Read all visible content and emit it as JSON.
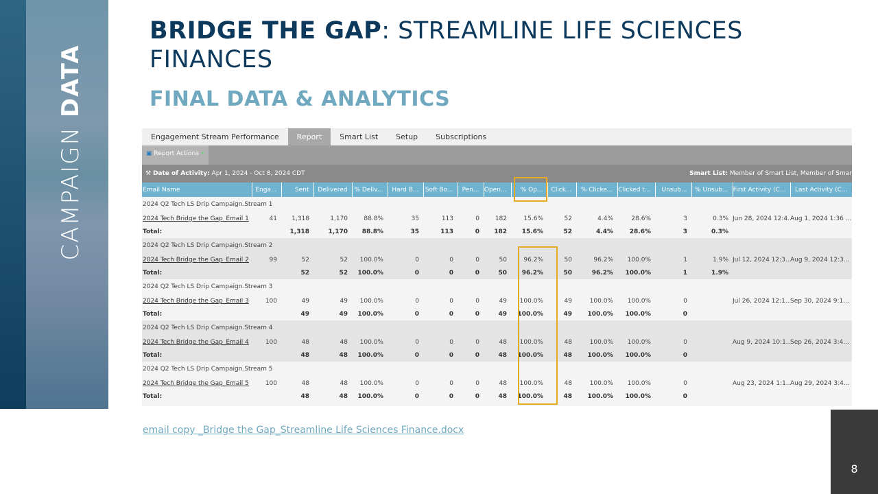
{
  "sidebar": {
    "title_light": "CAMPAIGN ",
    "title_bold": "DATA"
  },
  "header": {
    "title_bold": "BRIDGE THE GAP",
    "title_rest": ": STREAMLINE LIFE SCIENCES FINANCES",
    "subtitle": "FINAL DATA & ANALYTICS"
  },
  "report": {
    "tabs": [
      {
        "label": "Engagement Stream Performance"
      },
      {
        "label": "Report",
        "active": true
      },
      {
        "label": "Smart List"
      },
      {
        "label": "Setup"
      },
      {
        "label": "Subscriptions"
      }
    ],
    "actions_label": "Report Actions",
    "date_label": "Date of Activity:",
    "date_value": "Apr 1, 2024 - Oct 8, 2024 CDT",
    "smartlist_label": "Smart List:",
    "smartlist_value": "Member of Smart List, Member of Smar",
    "columns": [
      "Email Name",
      "Enga...",
      "Sent",
      "Delivered",
      "% Deliv...",
      "Hard B...",
      "Soft Bo...",
      "Pen...",
      "Open...",
      "% Op...",
      "Click...",
      "% Clicke...",
      "Clicked t...",
      "Unsub...",
      "% Unsub...",
      "First Activity (C...",
      "Last Activity (C..."
    ],
    "groups": [
      {
        "stream": "2024 Q2 Tech LS Drip Campaign.Stream 1",
        "email": [
          "2024 Tech Bridge the Gap_Email 1",
          "41",
          "1,318",
          "1,170",
          "88.8%",
          "35",
          "113",
          "0",
          "182",
          "15.6%",
          "52",
          "4.4%",
          "28.6%",
          "3",
          "0.3%",
          "Jun 28, 2024 12:4...",
          "Aug 1, 2024 1:36 ..."
        ],
        "total": [
          "Total:",
          "",
          "1,318",
          "1,170",
          "88.8%",
          "35",
          "113",
          "0",
          "182",
          "15.6%",
          "52",
          "4.4%",
          "28.6%",
          "3",
          "0.3%",
          "",
          ""
        ]
      },
      {
        "stream": "2024 Q2 Tech LS Drip Campaign.Stream 2",
        "email": [
          "2024 Tech Bridge the Gap_Email 2",
          "99",
          "52",
          "52",
          "100.0%",
          "0",
          "0",
          "0",
          "50",
          "96.2%",
          "50",
          "96.2%",
          "100.0%",
          "1",
          "1.9%",
          "Jul 12, 2024 12:3...",
          "Aug 9, 2024 12:3..."
        ],
        "total": [
          "Total:",
          "",
          "52",
          "52",
          "100.0%",
          "0",
          "0",
          "0",
          "50",
          "96.2%",
          "50",
          "96.2%",
          "100.0%",
          "1",
          "1.9%",
          "",
          ""
        ]
      },
      {
        "stream": "2024 Q2 Tech LS Drip Campaign.Stream 3",
        "email": [
          "2024 Tech Bridge the Gap_Email 3",
          "100",
          "49",
          "49",
          "100.0%",
          "0",
          "0",
          "0",
          "49",
          "100.0%",
          "49",
          "100.0%",
          "100.0%",
          "0",
          "",
          "Jul 26, 2024 12:1...",
          "Sep 30, 2024 9:1..."
        ],
        "total": [
          "Total:",
          "",
          "49",
          "49",
          "100.0%",
          "0",
          "0",
          "0",
          "49",
          "100.0%",
          "49",
          "100.0%",
          "100.0%",
          "0",
          "",
          "",
          ""
        ]
      },
      {
        "stream": "2024 Q2 Tech LS Drip Campaign.Stream 4",
        "email": [
          "2024 Tech Bridge the Gap_Email 4",
          "100",
          "48",
          "48",
          "100.0%",
          "0",
          "0",
          "0",
          "48",
          "100.0%",
          "48",
          "100.0%",
          "100.0%",
          "0",
          "",
          "Aug 9, 2024 10:1...",
          "Sep 26, 2024 3:4..."
        ],
        "total": [
          "Total:",
          "",
          "48",
          "48",
          "100.0%",
          "0",
          "0",
          "0",
          "48",
          "100.0%",
          "48",
          "100.0%",
          "100.0%",
          "0",
          "",
          "",
          ""
        ]
      },
      {
        "stream": "2024 Q2 Tech LS Drip Campaign.Stream 5",
        "email": [
          "2024 Tech Bridge the Gap_Email 5",
          "100",
          "48",
          "48",
          "100.0%",
          "0",
          "0",
          "0",
          "48",
          "100.0%",
          "48",
          "100.0%",
          "100.0%",
          "0",
          "",
          "Aug 23, 2024 1:1...",
          "Aug 29, 2024 3:4..."
        ],
        "total": [
          "Total:",
          "",
          "48",
          "48",
          "100.0%",
          "0",
          "0",
          "0",
          "48",
          "100.0%",
          "48",
          "100.0%",
          "100.0%",
          "0",
          "",
          "",
          ""
        ]
      }
    ]
  },
  "highlight_color": "#e6a924",
  "footer": {
    "doc_link": "email copy _Bridge the Gap_Streamline Life Sciences Finance.docx",
    "page_number": "8"
  }
}
